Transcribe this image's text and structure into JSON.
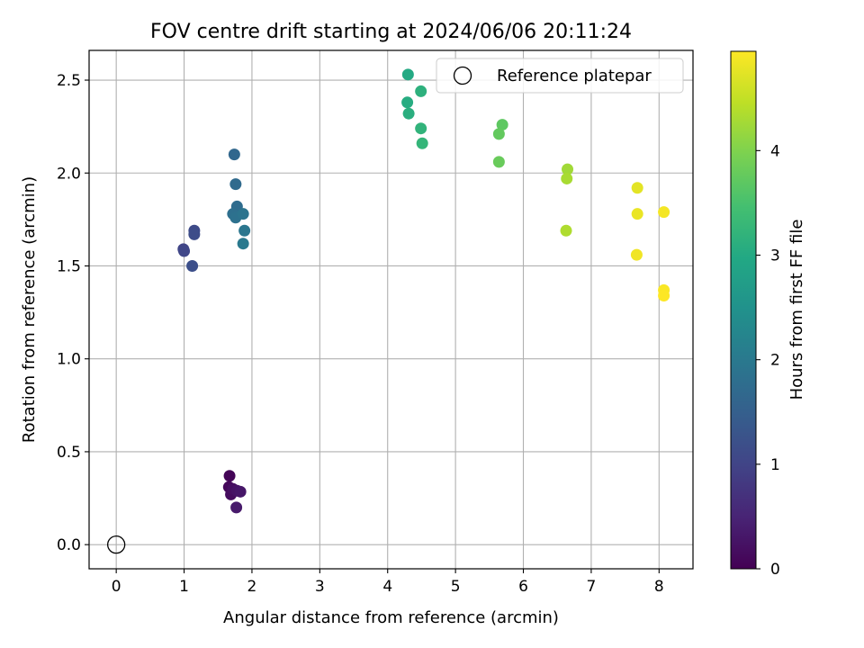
{
  "chart_data": {
    "type": "scatter",
    "title": "FOV centre drift starting at 2024/06/06 20:11:24",
    "xlabel": "Angular distance from reference (arcmin)",
    "ylabel": "Rotation from reference (arcmin)",
    "xlim": [
      -0.4,
      8.5
    ],
    "ylim": [
      -0.13,
      2.66
    ],
    "xticks": [
      "0",
      "1",
      "2",
      "3",
      "4",
      "5",
      "6",
      "7",
      "8"
    ],
    "yticks": [
      "0.0",
      "0.5",
      "1.0",
      "1.5",
      "2.0",
      "2.5"
    ],
    "grid": true,
    "legend": {
      "placement": "top-right",
      "entries": [
        "Reference platepar"
      ]
    },
    "reference_point": {
      "x": 0,
      "y": 0,
      "marker": "open-circle"
    },
    "colorbar": {
      "label": "Hours from first FF file",
      "colormap": "viridis",
      "range": [
        0,
        4.95
      ],
      "ticks": [
        "0",
        "1",
        "2",
        "3",
        "4"
      ]
    },
    "points": [
      {
        "x": 1.67,
        "y": 0.37,
        "c": 0.05
      },
      {
        "x": 1.66,
        "y": 0.31,
        "c": 0.1
      },
      {
        "x": 1.69,
        "y": 0.27,
        "c": 0.15
      },
      {
        "x": 1.72,
        "y": 0.3,
        "c": 0.2
      },
      {
        "x": 1.78,
        "y": 0.29,
        "c": 0.25
      },
      {
        "x": 1.83,
        "y": 0.285,
        "c": 0.3
      },
      {
        "x": 1.77,
        "y": 0.2,
        "c": 0.35
      },
      {
        "x": 0.99,
        "y": 1.59,
        "c": 1.0
      },
      {
        "x": 1.0,
        "y": 1.58,
        "c": 1.05
      },
      {
        "x": 1.15,
        "y": 1.69,
        "c": 1.1
      },
      {
        "x": 1.15,
        "y": 1.67,
        "c": 1.15
      },
      {
        "x": 1.12,
        "y": 1.5,
        "c": 1.2
      },
      {
        "x": 1.74,
        "y": 2.1,
        "c": 1.65
      },
      {
        "x": 1.76,
        "y": 1.94,
        "c": 1.7
      },
      {
        "x": 1.78,
        "y": 1.82,
        "c": 1.75
      },
      {
        "x": 1.72,
        "y": 1.78,
        "c": 1.8
      },
      {
        "x": 1.76,
        "y": 1.76,
        "c": 1.85
      },
      {
        "x": 1.87,
        "y": 1.78,
        "c": 1.9
      },
      {
        "x": 1.89,
        "y": 1.69,
        "c": 1.95
      },
      {
        "x": 1.87,
        "y": 1.62,
        "c": 2.0
      },
      {
        "x": 4.3,
        "y": 2.53,
        "c": 3.0
      },
      {
        "x": 4.29,
        "y": 2.38,
        "c": 3.05
      },
      {
        "x": 4.31,
        "y": 2.32,
        "c": 3.1
      },
      {
        "x": 4.49,
        "y": 2.44,
        "c": 3.15
      },
      {
        "x": 4.49,
        "y": 2.24,
        "c": 3.2
      },
      {
        "x": 4.51,
        "y": 2.16,
        "c": 3.25
      },
      {
        "x": 5.69,
        "y": 2.26,
        "c": 3.7
      },
      {
        "x": 5.64,
        "y": 2.21,
        "c": 3.75
      },
      {
        "x": 5.64,
        "y": 2.06,
        "c": 3.8
      },
      {
        "x": 6.65,
        "y": 2.02,
        "c": 4.25
      },
      {
        "x": 6.64,
        "y": 1.97,
        "c": 4.3
      },
      {
        "x": 6.63,
        "y": 1.69,
        "c": 4.35
      },
      {
        "x": 7.68,
        "y": 1.92,
        "c": 4.75
      },
      {
        "x": 7.68,
        "y": 1.78,
        "c": 4.8
      },
      {
        "x": 7.67,
        "y": 1.56,
        "c": 4.85
      },
      {
        "x": 8.07,
        "y": 1.79,
        "c": 4.88
      },
      {
        "x": 8.07,
        "y": 1.37,
        "c": 4.92
      },
      {
        "x": 8.07,
        "y": 1.34,
        "c": 4.95
      }
    ]
  }
}
